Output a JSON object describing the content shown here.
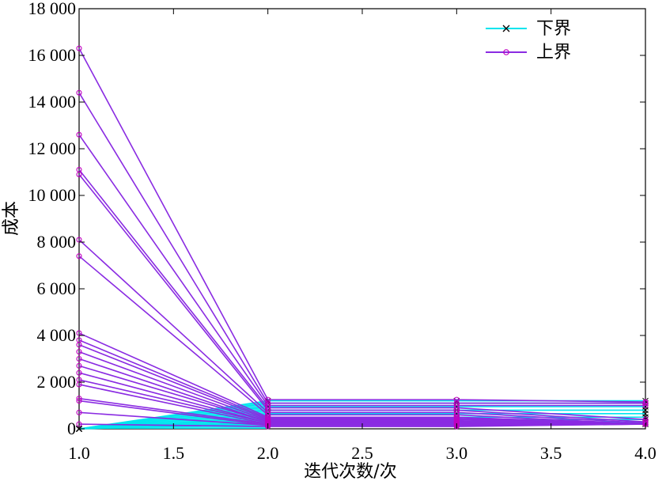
{
  "chart_data": {
    "type": "line",
    "xlabel": "迭代次数/次",
    "ylabel": "成本",
    "xlim": [
      1.0,
      4.0
    ],
    "ylim": [
      0,
      18000
    ],
    "x_ticks": [
      "1.0",
      "1.5",
      "2.0",
      "2.5",
      "3.0",
      "3.5",
      "4.0"
    ],
    "y_ticks": [
      "0",
      "2 000",
      "4 000",
      "6 000",
      "8 000",
      "10 000",
      "12 000",
      "14 000",
      "16 000",
      "18 000"
    ],
    "x_tick_values": [
      1.0,
      1.5,
      2.0,
      2.5,
      3.0,
      3.5,
      4.0
    ],
    "y_tick_values": [
      0,
      2000,
      4000,
      6000,
      8000,
      10000,
      12000,
      14000,
      16000,
      18000
    ],
    "legend_position": "top-right",
    "series": [
      {
        "name": "下界",
        "color": "#00e5ee",
        "marker": "x",
        "x": [
          1,
          2,
          3,
          4
        ],
        "lines": [
          [
            0,
            300,
            300,
            300
          ],
          [
            0,
            400,
            400,
            400
          ],
          [
            0,
            500,
            500,
            500
          ],
          [
            0,
            650,
            650,
            650
          ],
          [
            0,
            800,
            800,
            800
          ],
          [
            0,
            950,
            950,
            950
          ],
          [
            0,
            1100,
            1100,
            1100
          ],
          [
            0,
            1200,
            1200,
            1200
          ],
          [
            0,
            250,
            250,
            250
          ],
          [
            0,
            200,
            200,
            200
          ]
        ]
      },
      {
        "name": "上界",
        "color": "#8a2be2",
        "marker": "o",
        "x": [
          1,
          2,
          3,
          4
        ],
        "lines": [
          [
            16300,
            1250,
            1250,
            1150
          ],
          [
            14400,
            1100,
            1100,
            1100
          ],
          [
            12600,
            1000,
            1000,
            1000
          ],
          [
            11100,
            900,
            900,
            400
          ],
          [
            10900,
            800,
            800,
            300
          ],
          [
            8100,
            700,
            700,
            250
          ],
          [
            7400,
            600,
            600,
            200
          ],
          [
            4100,
            500,
            500,
            200
          ],
          [
            3800,
            450,
            450,
            200
          ],
          [
            3600,
            400,
            400,
            200
          ],
          [
            3300,
            350,
            350,
            200
          ],
          [
            3000,
            300,
            300,
            200
          ],
          [
            2700,
            300,
            300,
            200
          ],
          [
            2400,
            250,
            250,
            200
          ],
          [
            2100,
            250,
            250,
            200
          ],
          [
            1900,
            200,
            200,
            200
          ],
          [
            1300,
            200,
            200,
            200
          ],
          [
            1200,
            150,
            150,
            200
          ],
          [
            700,
            150,
            150,
            200
          ],
          [
            200,
            100,
            100,
            200
          ]
        ]
      }
    ]
  }
}
